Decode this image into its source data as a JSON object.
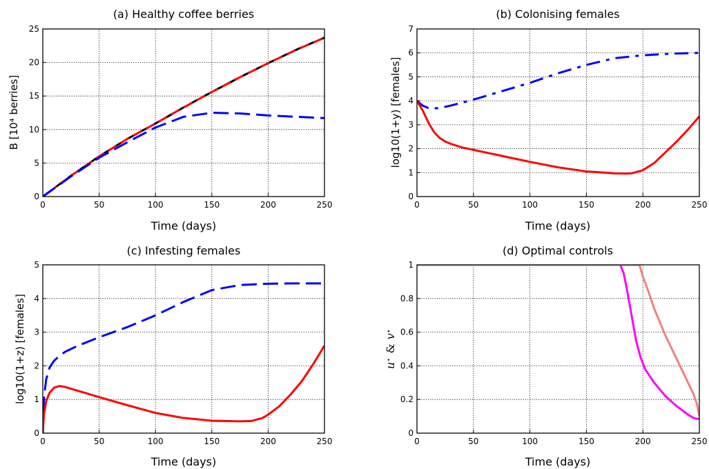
{
  "chart_data": [
    {
      "type": "line",
      "title": "(a) Healthy coffee berries",
      "xlabel": "Time (days)",
      "ylabel": "B [10⁴ berries]",
      "xlim": [
        0,
        250
      ],
      "ylim": [
        0,
        25
      ],
      "xticks": [
        "0",
        "50",
        "100",
        "150",
        "200",
        "250"
      ],
      "yticks": [
        "0",
        "5",
        "10",
        "15",
        "20",
        "25"
      ],
      "grid": true,
      "series": [
        {
          "color": "#000000",
          "style": "dashed",
          "width": 3,
          "x": [
            0,
            25,
            50,
            75,
            100,
            125,
            150,
            175,
            200,
            225,
            250
          ],
          "y": [
            0,
            3.1,
            6.0,
            8.6,
            10.9,
            13.3,
            15.6,
            17.8,
            19.9,
            21.9,
            23.7
          ]
        },
        {
          "color": "#ff0000",
          "style": "dashed",
          "width": 3,
          "x": [
            0,
            25,
            50,
            75,
            100,
            125,
            150,
            175,
            200,
            225,
            250
          ],
          "y": [
            0,
            3.1,
            6.0,
            8.6,
            10.9,
            13.3,
            15.6,
            17.8,
            19.9,
            21.9,
            23.7
          ]
        },
        {
          "color": "#0000ff",
          "style": "longdash",
          "width": 3,
          "x": [
            0,
            25,
            50,
            75,
            100,
            125,
            150,
            175,
            200,
            225,
            250
          ],
          "y": [
            0,
            3.0,
            5.8,
            8.1,
            10.3,
            11.9,
            12.5,
            12.4,
            12.1,
            11.9,
            11.7
          ]
        }
      ]
    },
    {
      "type": "line",
      "title": "(b) Colonising females",
      "xlabel": "Time (days)",
      "ylabel": "log10(1+y) [females]",
      "xlim": [
        0,
        250
      ],
      "ylim": [
        0,
        7
      ],
      "xticks": [
        "0",
        "50",
        "100",
        "150",
        "200",
        "250"
      ],
      "yticks": [
        "0",
        "1",
        "2",
        "3",
        "4",
        "5",
        "6",
        "7"
      ],
      "grid": true,
      "series": [
        {
          "color": "#0000ff",
          "style": "dashdot",
          "width": 3,
          "x": [
            0,
            5,
            10,
            15,
            20,
            30,
            50,
            75,
            100,
            125,
            150,
            175,
            200,
            225,
            250
          ],
          "y": [
            4.0,
            3.8,
            3.7,
            3.68,
            3.7,
            3.8,
            4.05,
            4.4,
            4.75,
            5.15,
            5.5,
            5.78,
            5.9,
            5.97,
            6.0
          ]
        },
        {
          "color": "#ff0000",
          "style": "solid",
          "width": 3,
          "x": [
            0,
            5,
            10,
            15,
            20,
            25,
            30,
            40,
            50,
            75,
            100,
            125,
            150,
            175,
            185,
            190,
            200,
            210,
            220,
            230,
            240,
            250
          ],
          "y": [
            4.0,
            3.6,
            3.1,
            2.7,
            2.45,
            2.3,
            2.2,
            2.05,
            1.95,
            1.7,
            1.45,
            1.22,
            1.05,
            0.97,
            0.96,
            0.97,
            1.1,
            1.4,
            1.85,
            2.3,
            2.8,
            3.35
          ]
        }
      ]
    },
    {
      "type": "line",
      "title": "(c) Infesting females",
      "xlabel": "Time (days)",
      "ylabel": "log10(1+z) [females]",
      "xlim": [
        0,
        250
      ],
      "ylim": [
        0,
        5
      ],
      "xticks": [
        "0",
        "50",
        "100",
        "150",
        "200",
        "250"
      ],
      "yticks": [
        "0",
        "1",
        "2",
        "3",
        "4",
        "5"
      ],
      "grid": true,
      "series": [
        {
          "color": "#0000ff",
          "style": "longdash",
          "width": 3,
          "x": [
            0,
            1,
            3,
            6,
            10,
            15,
            20,
            30,
            50,
            75,
            100,
            125,
            150,
            175,
            200,
            225,
            250
          ],
          "y": [
            0,
            1.05,
            1.6,
            1.95,
            2.15,
            2.3,
            2.42,
            2.58,
            2.85,
            3.15,
            3.5,
            3.9,
            4.25,
            4.4,
            4.44,
            4.45,
            4.45
          ]
        },
        {
          "color": "#ff0000",
          "style": "solid",
          "width": 3,
          "x": [
            0,
            1,
            3,
            6,
            10,
            15,
            20,
            30,
            50,
            75,
            100,
            125,
            150,
            175,
            185,
            195,
            200,
            210,
            220,
            230,
            240,
            250
          ],
          "y": [
            0,
            0.55,
            0.95,
            1.2,
            1.35,
            1.4,
            1.37,
            1.27,
            1.07,
            0.83,
            0.6,
            0.45,
            0.37,
            0.35,
            0.36,
            0.45,
            0.55,
            0.8,
            1.15,
            1.55,
            2.05,
            2.6
          ]
        }
      ]
    },
    {
      "type": "line",
      "title": "(d) Optimal controls",
      "xlabel": "Time (days)",
      "ylabel_math": {
        "u": "u",
        "v": "v",
        "star": "⋆",
        "amp": "&"
      },
      "xlim": [
        0,
        250
      ],
      "ylim": [
        0,
        1
      ],
      "xticks": [
        "0",
        "50",
        "100",
        "150",
        "200",
        "250"
      ],
      "yticks": [
        "0",
        "0.2",
        "0.4",
        "0.6",
        "0.8",
        "1"
      ],
      "grid": true,
      "series": [
        {
          "color": "#ff00ff",
          "style": "solid",
          "width": 3,
          "x": [
            0,
            180,
            183,
            186,
            190,
            194,
            198,
            202,
            210,
            220,
            230,
            240,
            245,
            248,
            250
          ],
          "y": [
            1,
            1,
            0.95,
            0.85,
            0.7,
            0.55,
            0.45,
            0.38,
            0.3,
            0.22,
            0.16,
            0.11,
            0.09,
            0.085,
            0.085
          ]
        },
        {
          "color": "#f08080",
          "style": "solid",
          "width": 3,
          "x": [
            0,
            197,
            200,
            205,
            210,
            220,
            230,
            240,
            245,
            248,
            250
          ],
          "y": [
            1,
            1,
            0.93,
            0.84,
            0.74,
            0.58,
            0.44,
            0.3,
            0.23,
            0.17,
            0.1
          ]
        }
      ]
    }
  ]
}
